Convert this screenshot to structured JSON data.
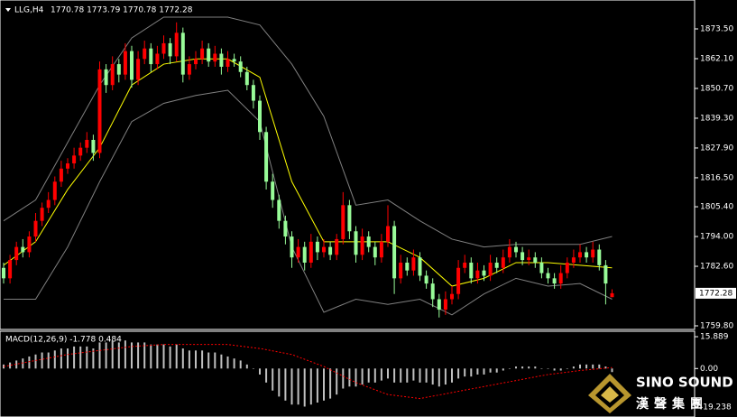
{
  "chart_data": [
    {
      "type": "candlestick",
      "title": "LLG,H4",
      "subtitle": "1770.78 1773.79 1770.78 1772.28",
      "open": [
        1782,
        1778,
        1785,
        1790,
        1788,
        1794,
        1800,
        1805,
        1808,
        1815,
        1820,
        1822,
        1825,
        1828,
        1831,
        1826,
        1858,
        1852,
        1860,
        1856,
        1865,
        1854,
        1862,
        1866,
        1860,
        1864,
        1868,
        1863,
        1872,
        1856,
        1860,
        1862,
        1866,
        1861,
        1864,
        1859,
        1862,
        1861,
        1857,
        1852,
        1846,
        1834,
        1815,
        1808,
        1800,
        1794,
        1786,
        1790,
        1784,
        1792,
        1788,
        1790,
        1787,
        1793,
        1806,
        1796,
        1787,
        1794,
        1790,
        1786,
        1792,
        1798,
        1778,
        1784,
        1781,
        1786,
        1779,
        1776,
        1770,
        1766,
        1770,
        1772,
        1782,
        1784,
        1778,
        1781,
        1779,
        1784,
        1782,
        1786,
        1790,
        1788,
        1785,
        1786,
        1784,
        1780,
        1778,
        1776,
        1780,
        1784,
        1786,
        1788,
        1786,
        1789,
        1783,
        1770.78
      ],
      "high": [
        1784,
        1787,
        1792,
        1793,
        1796,
        1803,
        1807,
        1811,
        1817,
        1823,
        1824,
        1828,
        1830,
        1834,
        1833,
        1861,
        1860,
        1863,
        1862,
        1868,
        1867,
        1865,
        1869,
        1868,
        1867,
        1871,
        1870,
        1876,
        1874,
        1863,
        1865,
        1869,
        1868,
        1867,
        1866,
        1865,
        1864,
        1863,
        1859,
        1854,
        1848,
        1836,
        1818,
        1810,
        1802,
        1796,
        1793,
        1792,
        1795,
        1794,
        1793,
        1792,
        1795,
        1811,
        1808,
        1798,
        1797,
        1796,
        1792,
        1795,
        1806,
        1800,
        1787,
        1786,
        1789,
        1788,
        1781,
        1778,
        1772,
        1773,
        1775,
        1785,
        1787,
        1786,
        1784,
        1783,
        1787,
        1786,
        1789,
        1793,
        1792,
        1790,
        1789,
        1788,
        1786,
        1782,
        1780,
        1783,
        1786,
        1789,
        1791,
        1790,
        1792,
        1791,
        1785,
        1773.79
      ],
      "low": [
        1776,
        1776,
        1783,
        1786,
        1786,
        1792,
        1798,
        1803,
        1806,
        1813,
        1818,
        1820,
        1823,
        1826,
        1823,
        1824,
        1849,
        1850,
        1853,
        1854,
        1851,
        1852,
        1860,
        1857,
        1858,
        1862,
        1860,
        1861,
        1853,
        1854,
        1858,
        1860,
        1859,
        1859,
        1856,
        1857,
        1859,
        1855,
        1850,
        1843,
        1831,
        1812,
        1805,
        1797,
        1791,
        1782,
        1784,
        1781,
        1782,
        1785,
        1786,
        1785,
        1785,
        1791,
        1793,
        1784,
        1785,
        1788,
        1783,
        1784,
        1790,
        1772,
        1776,
        1779,
        1779,
        1777,
        1774,
        1767,
        1763,
        1764,
        1768,
        1770,
        1780,
        1776,
        1776,
        1777,
        1777,
        1780,
        1780,
        1784,
        1786,
        1783,
        1783,
        1782,
        1778,
        1776,
        1774,
        1774,
        1778,
        1782,
        1784,
        1784,
        1784,
        1781,
        1768,
        1770.78
      ],
      "close": [
        1778,
        1785,
        1790,
        1788,
        1794,
        1800,
        1805,
        1808,
        1815,
        1820,
        1822,
        1825,
        1828,
        1831,
        1826,
        1858,
        1852,
        1860,
        1856,
        1865,
        1854,
        1862,
        1866,
        1860,
        1864,
        1868,
        1863,
        1872,
        1856,
        1860,
        1862,
        1866,
        1861,
        1864,
        1859,
        1862,
        1861,
        1857,
        1852,
        1846,
        1834,
        1815,
        1808,
        1800,
        1794,
        1786,
        1790,
        1784,
        1792,
        1788,
        1790,
        1787,
        1793,
        1806,
        1796,
        1787,
        1794,
        1790,
        1786,
        1792,
        1798,
        1778,
        1784,
        1781,
        1786,
        1779,
        1776,
        1770,
        1766,
        1770,
        1772,
        1782,
        1784,
        1778,
        1781,
        1779,
        1784,
        1782,
        1786,
        1790,
        1788,
        1785,
        1786,
        1784,
        1780,
        1778,
        1776,
        1780,
        1784,
        1786,
        1788,
        1786,
        1789,
        1783,
        1776,
        1772.28
      ],
      "up_color": "#ff0000",
      "down_color": "#98fb98",
      "overlays": [
        {
          "x": [
            0,
            5,
            10,
            15,
            20,
            25,
            30,
            35,
            40,
            45,
            50,
            55,
            60,
            65,
            70,
            75,
            80,
            85,
            90,
            95
          ],
          "values": [
            1800,
            1808,
            1830,
            1852,
            1870,
            1878,
            1878,
            1878,
            1875,
            1860,
            1840,
            1806,
            1808,
            1800,
            1793,
            1790,
            1791,
            1791,
            1791,
            1794
          ],
          "color": "#808080"
        },
        {
          "x": [
            0,
            5,
            10,
            15,
            20,
            25,
            30,
            35,
            40,
            45,
            50,
            55,
            60,
            65,
            70,
            75,
            80,
            85,
            90,
            95
          ],
          "values": [
            1770,
            1770,
            1790,
            1815,
            1838,
            1845,
            1848,
            1850,
            1838,
            1790,
            1765,
            1770,
            1768,
            1770,
            1764,
            1772,
            1778,
            1775,
            1776,
            1770
          ],
          "color": "#808080"
        },
        {
          "x": [
            0,
            5,
            10,
            15,
            20,
            25,
            30,
            35,
            40,
            45,
            50,
            55,
            60,
            65,
            70,
            75,
            80,
            85,
            90,
            95
          ],
          "values": [
            1783,
            1792,
            1812,
            1828,
            1852,
            1860,
            1862,
            1862,
            1855,
            1815,
            1792,
            1792,
            1792,
            1786,
            1775,
            1778,
            1784,
            1784,
            1783,
            1782
          ],
          "color": "#ffff00"
        }
      ],
      "ylim": [
        1758.42,
        1884.56
      ],
      "yticks": [
        {
          "value": 1873.5,
          "label": "1873.50"
        },
        {
          "value": 1862.1,
          "label": "1862.10"
        },
        {
          "value": 1850.7,
          "label": "1850.70"
        },
        {
          "value": 1839.3,
          "label": "1839.30"
        },
        {
          "value": 1827.9,
          "label": "1827.90"
        },
        {
          "value": 1816.5,
          "label": "1816.50"
        },
        {
          "value": 1805.4,
          "label": "1805.40"
        },
        {
          "value": 1794,
          "label": "1794.00"
        },
        {
          "value": 1782.6,
          "label": "1782.60"
        },
        {
          "value": 1759.8,
          "label": "1759.80"
        }
      ]
    },
    {
      "type": "bar",
      "title": "MACD(12,26,9) -1.778 0.484",
      "values": [
        2,
        3,
        4,
        5,
        6,
        7,
        8,
        8,
        9,
        10,
        10,
        11,
        11,
        11,
        10,
        13,
        13,
        14,
        13,
        14,
        13,
        13,
        13,
        12,
        12,
        12,
        11,
        12,
        10,
        9,
        9,
        9,
        8,
        8,
        7,
        6,
        5,
        4,
        2,
        0,
        -3,
        -7,
        -11,
        -14,
        -16,
        -18,
        -18,
        -19,
        -18,
        -17,
        -16,
        -15,
        -13,
        -10,
        -9,
        -9,
        -8,
        -7,
        -7,
        -6,
        -5,
        -7,
        -7,
        -7,
        -6,
        -7,
        -7,
        -8,
        -9,
        -8,
        -7,
        -5,
        -4,
        -4,
        -3,
        -3,
        -2,
        -2,
        -1,
        0,
        1,
        1,
        1,
        1,
        0,
        0,
        -1,
        -1,
        0,
        1,
        2,
        2,
        2,
        2,
        1,
        -1.778
      ],
      "color": "#c0c0c0",
      "signal": {
        "x": [
          0,
          5,
          10,
          15,
          20,
          25,
          30,
          35,
          40,
          45,
          50,
          55,
          60,
          65,
          70,
          75,
          80,
          85,
          90,
          95
        ],
        "values": [
          1,
          4,
          7,
          9,
          11,
          12,
          12,
          12,
          10,
          7,
          1,
          -7,
          -13,
          -15,
          -12,
          -9,
          -6,
          -3,
          -1,
          0.484
        ],
        "color": "#ff0000"
      },
      "ylim": [
        -24.2,
        18.6
      ],
      "yticks": [
        15.889,
        {
          "value": 0,
          "label": "0.00"
        },
        -19.238
      ]
    }
  ],
  "logo": {
    "text": "SINO SOUND",
    "subtext": "漢聲集團"
  }
}
